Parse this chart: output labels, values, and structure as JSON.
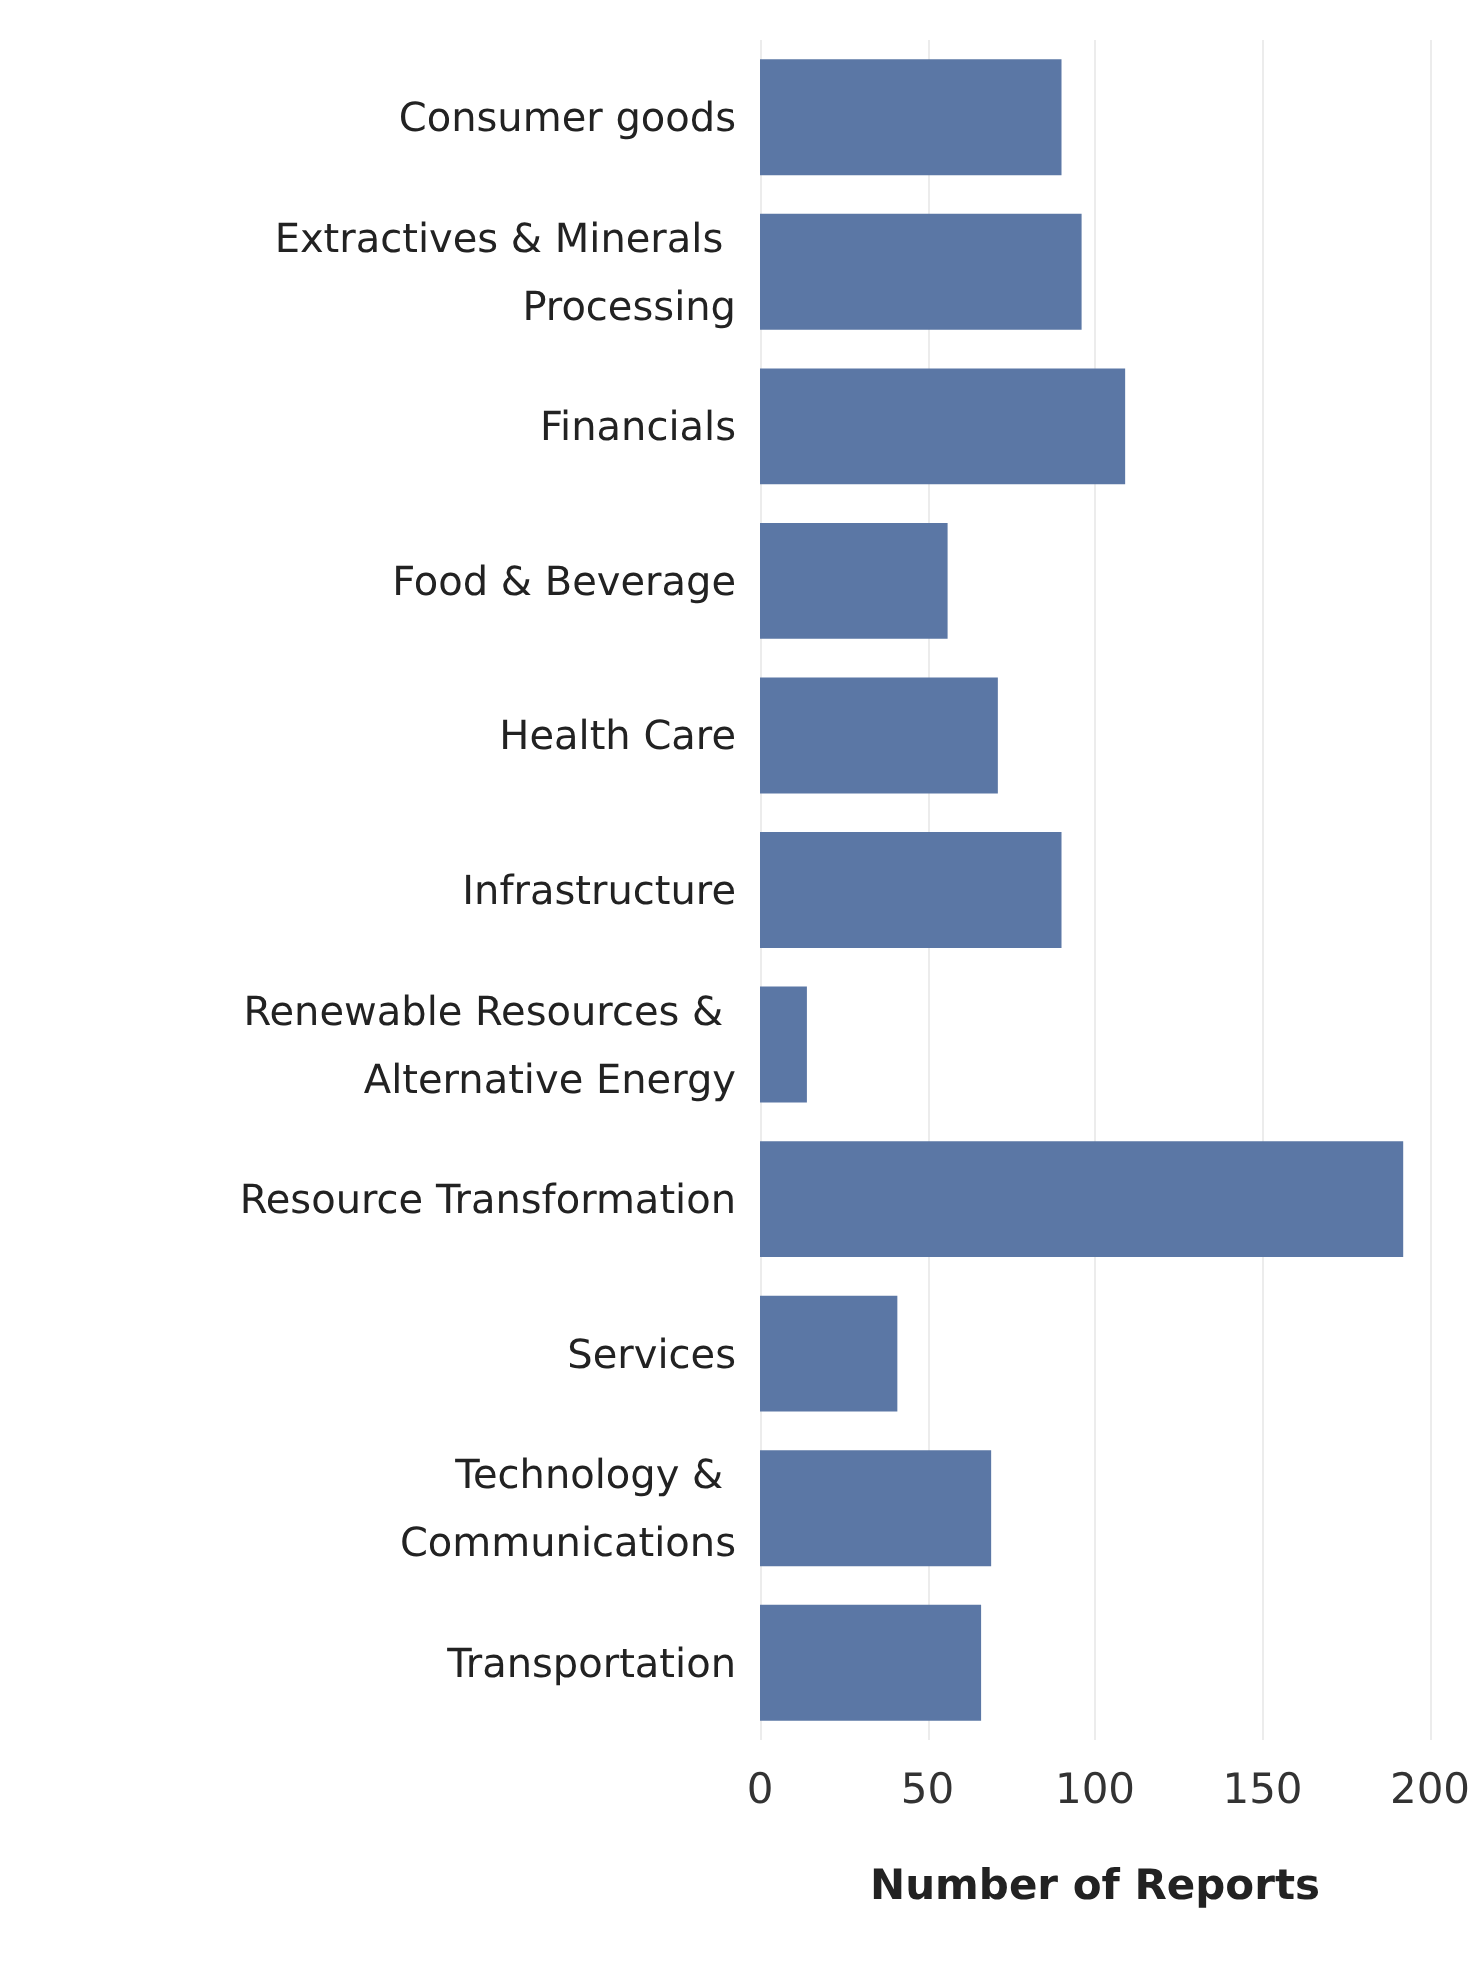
{
  "chart_data": {
    "type": "bar",
    "orientation": "horizontal",
    "xlabel": "Number of Reports",
    "categories": [
      "Consumer goods",
      "Extractives & Minerals Processing",
      "Financials",
      "Food & Beverage",
      "Health Care",
      "Infrastructure",
      "Renewable Resources & Alternative Energy",
      "Resource Transformation",
      "Services",
      "Technology & Communications",
      "Transportation"
    ],
    "values": [
      90,
      96,
      109,
      56,
      71,
      90,
      14,
      192,
      41,
      69,
      66
    ],
    "color": "#5b77a5",
    "xlim": [
      0,
      200
    ],
    "xticks": [
      0,
      50,
      100,
      150,
      200
    ],
    "grid": "x"
  }
}
